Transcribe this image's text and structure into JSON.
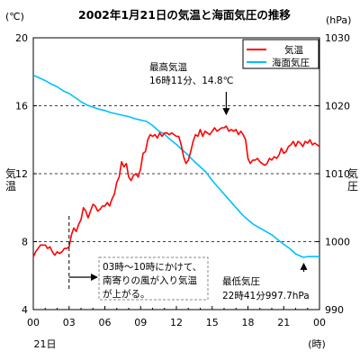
{
  "chart_data": {
    "type": "line",
    "title": "2002年1月21日の気温と海面気圧の推移",
    "x_tick_labels": [
      "00",
      "03",
      "06",
      "09",
      "12",
      "15",
      "18",
      "21",
      "00"
    ],
    "x_sub_label": "21日",
    "x_unit_label": "(時)",
    "xlim": [
      0,
      24
    ],
    "y_left": {
      "unit": "(℃)",
      "label": "気温",
      "ticks": [
        4,
        8,
        12,
        16,
        20
      ],
      "lim": [
        4,
        20
      ]
    },
    "y_right": {
      "unit": "(hPa)",
      "label": "気圧",
      "ticks": [
        990,
        1000,
        1010,
        1020,
        1030
      ],
      "lim": [
        990,
        1030
      ]
    },
    "grid": {
      "horizontal_dashed_at_left_values": [
        8,
        12,
        16
      ]
    },
    "legend": {
      "position": "top-right"
    },
    "series": [
      {
        "name": "気温",
        "axis": "left",
        "color": "#ff0000",
        "x": [
          0,
          0.2,
          0.4,
          0.6,
          0.8,
          1.0,
          1.2,
          1.4,
          1.6,
          1.8,
          2.0,
          2.2,
          2.4,
          2.6,
          2.8,
          3.0,
          3.2,
          3.4,
          3.6,
          3.8,
          4.0,
          4.2,
          4.4,
          4.6,
          4.8,
          5.0,
          5.2,
          5.4,
          5.6,
          5.8,
          6.0,
          6.2,
          6.4,
          6.6,
          6.8,
          7.0,
          7.2,
          7.4,
          7.6,
          7.8,
          8.0,
          8.2,
          8.4,
          8.6,
          8.8,
          9.0,
          9.2,
          9.4,
          9.6,
          9.8,
          10.0,
          10.2,
          10.4,
          10.6,
          10.8,
          11.0,
          11.2,
          11.4,
          11.6,
          11.8,
          12.0,
          12.2,
          12.4,
          12.6,
          12.8,
          13.0,
          13.2,
          13.4,
          13.6,
          13.8,
          14.0,
          14.2,
          14.4,
          14.6,
          14.8,
          15.0,
          15.2,
          15.4,
          15.6,
          15.8,
          16.0,
          16.18,
          16.4,
          16.6,
          16.8,
          17.0,
          17.2,
          17.4,
          17.6,
          17.8,
          18.0,
          18.2,
          18.4,
          18.6,
          18.8,
          19.0,
          19.2,
          19.4,
          19.6,
          19.8,
          20.0,
          20.2,
          20.4,
          20.6,
          20.8,
          21.0,
          21.2,
          21.4,
          21.6,
          21.8,
          22.0,
          22.2,
          22.4,
          22.6,
          22.8,
          23.0,
          23.2,
          23.4,
          23.6,
          23.8,
          24.0
        ],
        "values": [
          7.1,
          7.4,
          7.6,
          7.8,
          7.8,
          7.8,
          7.6,
          7.7,
          7.4,
          7.2,
          7.4,
          7.3,
          7.4,
          7.6,
          7.6,
          7.7,
          8.4,
          8.8,
          8.6,
          9.0,
          9.3,
          10.0,
          9.8,
          9.4,
          9.8,
          10.2,
          10.1,
          9.8,
          9.9,
          10.1,
          10.1,
          10.3,
          10.1,
          10.5,
          10.8,
          11.5,
          11.8,
          12.7,
          12.4,
          12.6,
          11.8,
          11.6,
          11.9,
          12.0,
          11.8,
          12.3,
          13.2,
          13.3,
          14.0,
          14.3,
          14.2,
          14.3,
          14.1,
          14.4,
          14.2,
          14.4,
          14.4,
          14.3,
          14.4,
          14.3,
          14.2,
          14.2,
          13.7,
          13.0,
          12.6,
          12.8,
          13.3,
          13.9,
          14.3,
          14.2,
          14.6,
          14.2,
          14.5,
          14.4,
          14.3,
          14.5,
          14.7,
          14.5,
          14.6,
          14.7,
          14.7,
          14.8,
          14.5,
          14.6,
          14.5,
          14.6,
          14.3,
          14.5,
          14.3,
          14.0,
          12.9,
          12.6,
          12.8,
          12.8,
          12.9,
          12.7,
          12.6,
          12.5,
          12.6,
          12.9,
          12.8,
          13.0,
          12.9,
          13.1,
          13.5,
          13.2,
          13.3,
          13.6,
          13.7,
          13.9,
          13.6,
          13.9,
          13.8,
          13.6,
          13.9,
          13.8,
          14.0,
          13.7,
          13.8,
          13.7,
          13.6
        ]
      },
      {
        "name": "海面気圧",
        "axis": "right",
        "color": "#00c0ff",
        "x": [
          0,
          0.5,
          1,
          1.5,
          2,
          2.5,
          3,
          3.5,
          4,
          4.5,
          5,
          5.5,
          6,
          6.5,
          7,
          7.5,
          8,
          8.5,
          9,
          9.5,
          10,
          10.5,
          11,
          11.5,
          12,
          12.5,
          13,
          13.5,
          14,
          14.5,
          15,
          15.5,
          16,
          16.5,
          17,
          17.5,
          18,
          18.5,
          19,
          19.5,
          20,
          20.5,
          21,
          21.5,
          22,
          22.5,
          22.68,
          23,
          23.5,
          24
        ],
        "values": [
          1024.5,
          1024.1,
          1023.7,
          1023.2,
          1022.8,
          1022.2,
          1021.8,
          1021.2,
          1020.6,
          1020.1,
          1019.8,
          1019.5,
          1019.3,
          1019.0,
          1018.8,
          1018.6,
          1018.4,
          1018.1,
          1017.9,
          1017.7,
          1017.1,
          1016.3,
          1015.8,
          1015.0,
          1014.3,
          1013.5,
          1012.7,
          1011.8,
          1011.0,
          1010.2,
          1009.0,
          1008.0,
          1007.0,
          1006.0,
          1005.0,
          1004.0,
          1003.2,
          1002.5,
          1002.0,
          1001.5,
          1001.0,
          1000.3,
          999.6,
          999.0,
          998.2,
          997.8,
          997.7,
          997.8,
          997.8,
          997.8
        ]
      }
    ],
    "annotations": {
      "max_temp": {
        "lines": [
          "最高気温",
          "16時11分、14.8℃"
        ],
        "x": 16.18,
        "y": 14.8
      },
      "min_pressure": {
        "lines": [
          "最低気圧",
          "22時41分997.7hPa"
        ],
        "x": 22.68,
        "y": 997.7
      },
      "wind_note": {
        "lines": [
          "03時～10時にかけて、",
          "南寄りの風が入り気温",
          "が上がる。"
        ],
        "x_start": 3,
        "x_end": 10
      }
    }
  }
}
